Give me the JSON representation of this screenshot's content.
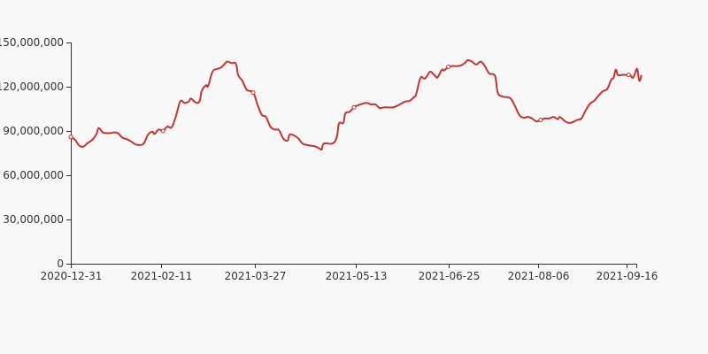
{
  "chart_data": {
    "type": "line",
    "title": "",
    "xlabel": "",
    "ylabel": "",
    "x_tick_labels": [
      "2020-12-31",
      "2021-02-11",
      "2021-03-27",
      "2021-05-13",
      "2021-06-25",
      "2021-08-06",
      "2021-09-16"
    ],
    "y_tick_labels": [
      "0",
      "30,000,000",
      "60,000,000",
      "90,000,000",
      "120,000,000",
      "150,000,000"
    ],
    "ylim": [
      0,
      150000000
    ],
    "xlim": [
      "2020-12-31",
      "2021-09-21"
    ],
    "grid": false,
    "legend": "none",
    "series": [
      {
        "color": "#c23531",
        "points": [
          [
            "2020-12-31",
            86000000
          ],
          [
            "2021-01-02",
            84000000
          ],
          [
            "2021-01-04",
            80000000
          ],
          [
            "2021-01-06",
            79500000
          ],
          [
            "2021-01-08",
            82000000
          ],
          [
            "2021-01-10",
            84000000
          ],
          [
            "2021-01-12",
            88000000
          ],
          [
            "2021-01-13",
            92000000
          ],
          [
            "2021-01-15",
            89000000
          ],
          [
            "2021-01-18",
            88500000
          ],
          [
            "2021-01-20",
            89000000
          ],
          [
            "2021-01-22",
            88500000
          ],
          [
            "2021-01-24",
            85500000
          ],
          [
            "2021-01-26",
            84500000
          ],
          [
            "2021-01-28",
            83000000
          ],
          [
            "2021-01-30",
            81000000
          ],
          [
            "2021-02-01",
            80500000
          ],
          [
            "2021-02-03",
            81500000
          ],
          [
            "2021-02-05",
            87500000
          ],
          [
            "2021-02-07",
            89500000
          ],
          [
            "2021-02-08",
            88000000
          ],
          [
            "2021-02-10",
            91000000
          ],
          [
            "2021-02-12",
            90000000
          ],
          [
            "2021-02-14",
            93000000
          ],
          [
            "2021-02-16",
            92500000
          ],
          [
            "2021-02-18",
            100000000
          ],
          [
            "2021-02-20",
            110000000
          ],
          [
            "2021-02-22",
            109000000
          ],
          [
            "2021-02-24",
            110000000
          ],
          [
            "2021-02-25",
            112000000
          ],
          [
            "2021-02-27",
            109500000
          ],
          [
            "2021-03-01",
            110000000
          ],
          [
            "2021-03-02",
            117000000
          ],
          [
            "2021-03-04",
            121000000
          ],
          [
            "2021-03-05",
            120500000
          ],
          [
            "2021-03-07",
            130000000
          ],
          [
            "2021-03-09",
            132000000
          ],
          [
            "2021-03-11",
            133000000
          ],
          [
            "2021-03-13",
            136000000
          ],
          [
            "2021-03-14",
            137000000
          ],
          [
            "2021-03-16",
            136000000
          ],
          [
            "2021-03-18",
            135500000
          ],
          [
            "2021-03-19",
            128000000
          ],
          [
            "2021-03-21",
            124000000
          ],
          [
            "2021-03-23",
            118000000
          ],
          [
            "2021-03-26",
            116000000
          ],
          [
            "2021-03-28",
            108000000
          ],
          [
            "2021-03-30",
            101000000
          ],
          [
            "2021-04-01",
            99500000
          ],
          [
            "2021-04-03",
            93000000
          ],
          [
            "2021-04-05",
            91000000
          ],
          [
            "2021-04-07",
            90500000
          ],
          [
            "2021-04-09",
            85000000
          ],
          [
            "2021-04-11",
            83500000
          ],
          [
            "2021-04-12",
            87500000
          ],
          [
            "2021-04-14",
            87000000
          ],
          [
            "2021-04-16",
            85000000
          ],
          [
            "2021-04-18",
            81500000
          ],
          [
            "2021-04-20",
            80500000
          ],
          [
            "2021-04-22",
            80000000
          ],
          [
            "2021-04-24",
            79500000
          ],
          [
            "2021-04-26",
            78000000
          ],
          [
            "2021-04-27",
            77500000
          ],
          [
            "2021-04-28",
            81500000
          ],
          [
            "2021-05-02",
            81500000
          ],
          [
            "2021-05-04",
            86000000
          ],
          [
            "2021-05-05",
            95000000
          ],
          [
            "2021-05-07",
            95500000
          ],
          [
            "2021-05-08",
            102000000
          ],
          [
            "2021-05-10",
            103000000
          ],
          [
            "2021-05-12",
            106000000
          ],
          [
            "2021-05-14",
            107500000
          ],
          [
            "2021-05-16",
            108500000
          ],
          [
            "2021-05-18",
            109000000
          ],
          [
            "2021-05-20",
            108000000
          ],
          [
            "2021-05-22",
            108000000
          ],
          [
            "2021-05-24",
            105500000
          ],
          [
            "2021-05-26",
            106000000
          ],
          [
            "2021-05-30",
            106000000
          ],
          [
            "2021-06-01",
            107000000
          ],
          [
            "2021-06-03",
            108500000
          ],
          [
            "2021-06-05",
            110000000
          ],
          [
            "2021-06-07",
            110500000
          ],
          [
            "2021-06-09",
            113000000
          ],
          [
            "2021-06-10",
            115000000
          ],
          [
            "2021-06-12",
            126000000
          ],
          [
            "2021-06-14",
            125500000
          ],
          [
            "2021-06-16",
            129500000
          ],
          [
            "2021-06-17",
            130000000
          ],
          [
            "2021-06-19",
            127000000
          ],
          [
            "2021-06-20",
            126500000
          ],
          [
            "2021-06-22",
            131500000
          ],
          [
            "2021-06-23",
            131000000
          ],
          [
            "2021-06-25",
            133500000
          ],
          [
            "2021-06-27",
            134000000
          ],
          [
            "2021-06-29",
            134000000
          ],
          [
            "2021-07-01",
            134500000
          ],
          [
            "2021-07-03",
            136500000
          ],
          [
            "2021-07-04",
            138000000
          ],
          [
            "2021-07-06",
            137000000
          ],
          [
            "2021-07-08",
            135000000
          ],
          [
            "2021-07-10",
            137000000
          ],
          [
            "2021-07-12",
            134000000
          ],
          [
            "2021-07-14",
            129000000
          ],
          [
            "2021-07-16",
            128500000
          ],
          [
            "2021-07-17",
            126000000
          ],
          [
            "2021-07-18",
            116000000
          ],
          [
            "2021-07-20",
            113500000
          ],
          [
            "2021-07-22",
            113000000
          ],
          [
            "2021-07-24",
            112000000
          ],
          [
            "2021-07-26",
            107000000
          ],
          [
            "2021-07-28",
            101000000
          ],
          [
            "2021-07-30",
            99000000
          ],
          [
            "2021-08-01",
            99500000
          ],
          [
            "2021-08-03",
            98500000
          ],
          [
            "2021-08-05",
            96500000
          ],
          [
            "2021-08-07",
            97500000
          ],
          [
            "2021-08-09",
            98500000
          ],
          [
            "2021-08-11",
            98500000
          ],
          [
            "2021-08-13",
            99500000
          ],
          [
            "2021-08-15",
            98000000
          ],
          [
            "2021-08-16",
            99500000
          ],
          [
            "2021-08-18",
            97000000
          ],
          [
            "2021-08-20",
            95500000
          ],
          [
            "2021-08-22",
            96000000
          ],
          [
            "2021-08-24",
            97500000
          ],
          [
            "2021-08-26",
            98500000
          ],
          [
            "2021-08-28",
            104000000
          ],
          [
            "2021-08-30",
            108500000
          ],
          [
            "2021-09-01",
            110500000
          ],
          [
            "2021-09-03",
            114000000
          ],
          [
            "2021-09-05",
            117000000
          ],
          [
            "2021-09-07",
            118500000
          ],
          [
            "2021-09-09",
            125000000
          ],
          [
            "2021-09-10",
            126000000
          ],
          [
            "2021-09-11",
            131500000
          ],
          [
            "2021-09-12",
            128000000
          ],
          [
            "2021-09-14",
            128000000
          ],
          [
            "2021-09-16",
            128000000
          ],
          [
            "2021-09-17",
            128000000
          ],
          [
            "2021-09-18",
            127500000
          ],
          [
            "2021-09-19",
            126000000
          ],
          [
            "2021-09-20",
            129000000
          ],
          [
            "2021-09-21",
            132000000
          ],
          [
            "2021-09-22",
            124000000
          ],
          [
            "2021-09-23",
            128000000
          ]
        ],
        "markers": [
          [
            "2020-12-31",
            86000000
          ],
          [
            "2021-02-12",
            90000000
          ],
          [
            "2021-03-26",
            116000000
          ],
          [
            "2021-05-12",
            106000000
          ],
          [
            "2021-06-25",
            133500000
          ],
          [
            "2021-08-07",
            97500000
          ],
          [
            "2021-09-17",
            128000000
          ]
        ]
      }
    ]
  }
}
